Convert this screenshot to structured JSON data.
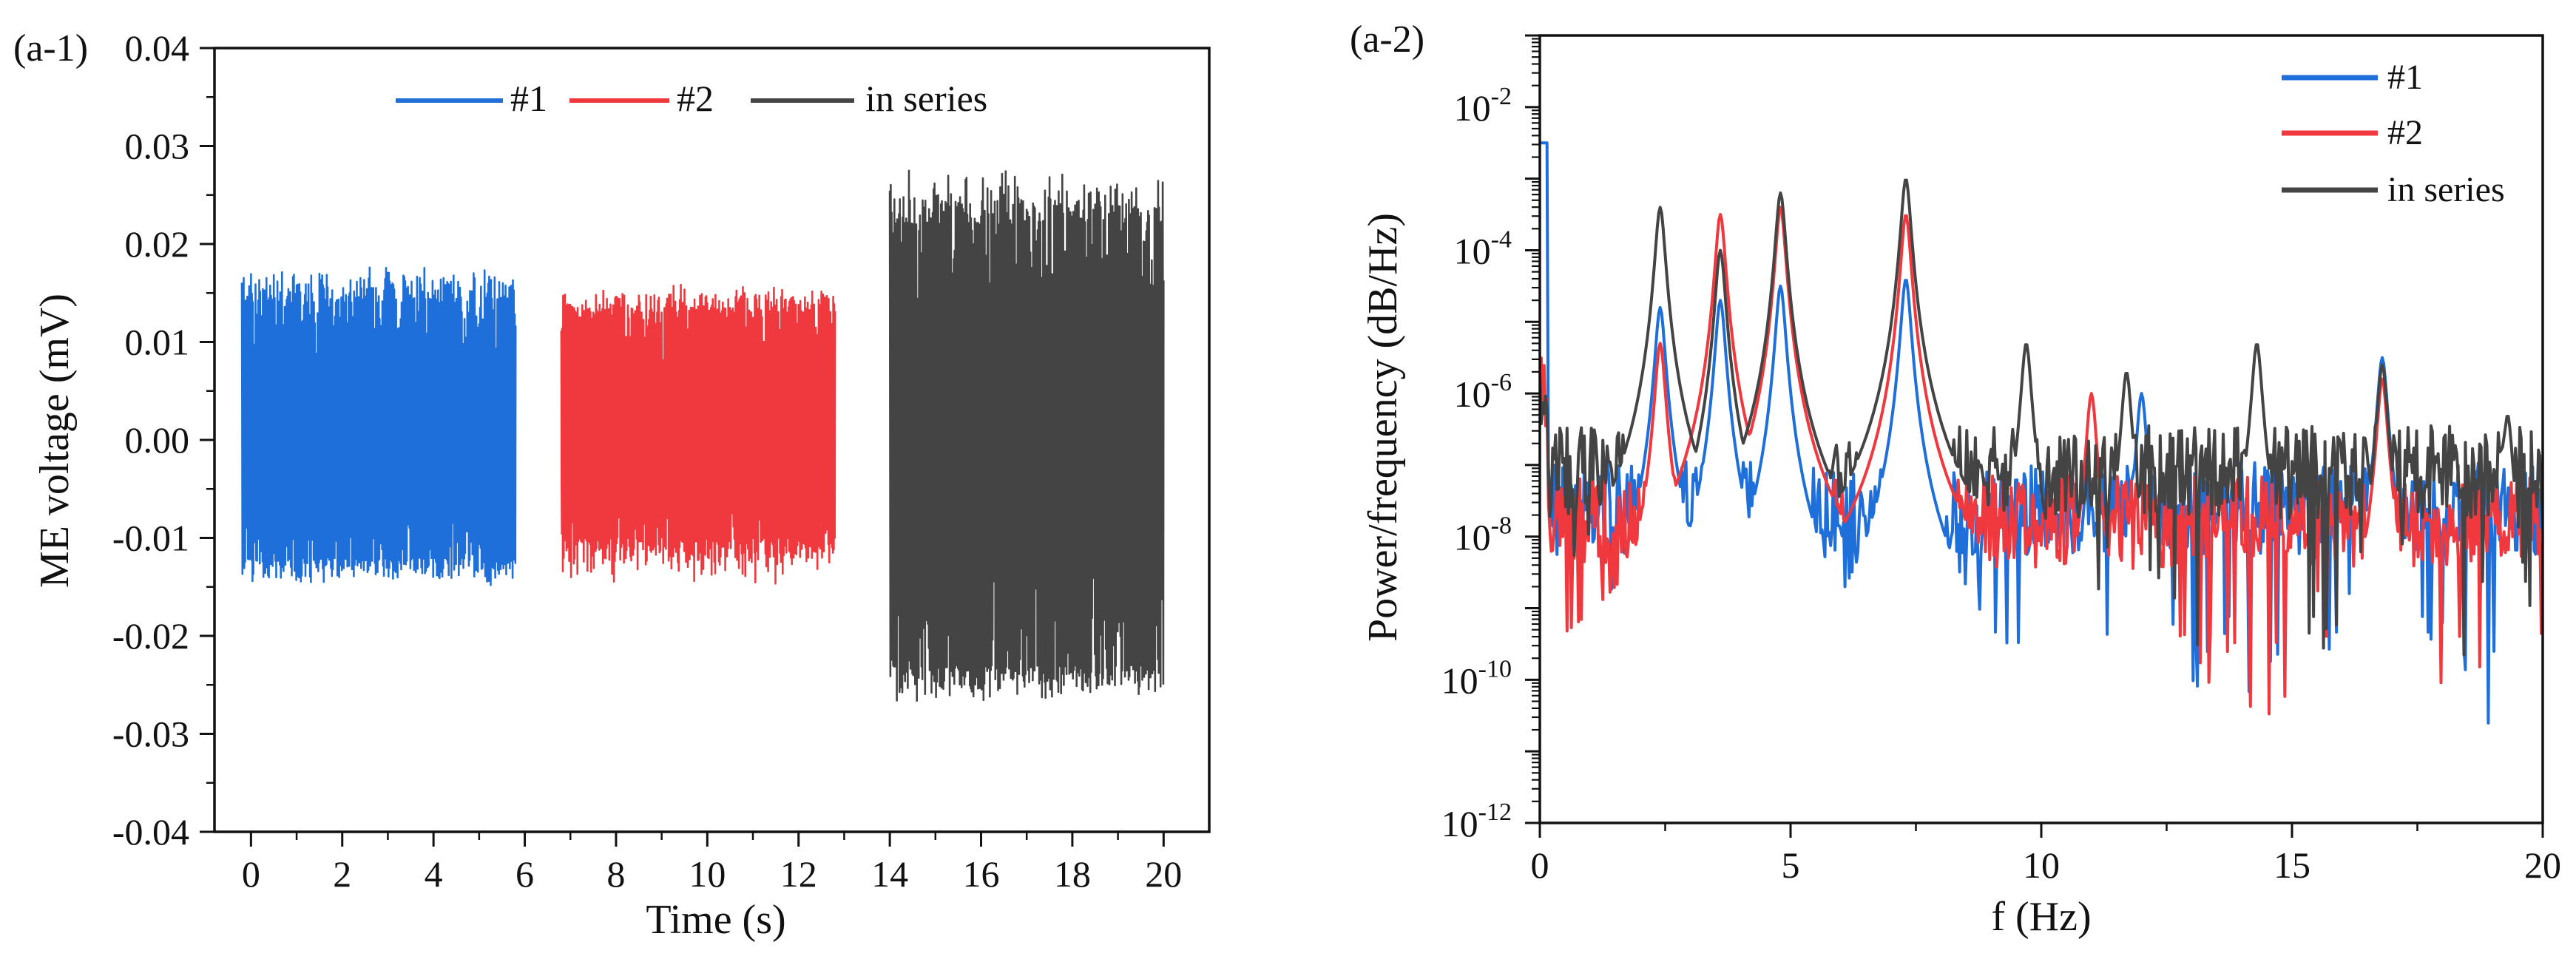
{
  "chart_data": [
    {
      "id": "a1",
      "type": "line",
      "panel_label": "(a-1)",
      "xlabel": "Time (s)",
      "ylabel": "ME voltage (mV)",
      "xlim": [
        -0.8,
        21
      ],
      "ylim": [
        -0.04,
        0.04
      ],
      "xticks": [
        0,
        2,
        4,
        6,
        8,
        10,
        12,
        14,
        16,
        18,
        20
      ],
      "yticks": [
        -0.04,
        -0.03,
        -0.02,
        -0.01,
        0.0,
        0.01,
        0.02,
        0.03,
        0.04
      ],
      "ytick_labels": [
        "-0.04",
        "-0.03",
        "-0.02",
        "-0.01",
        "0.00",
        "0.01",
        "0.02",
        "0.03",
        "0.04"
      ],
      "legend": {
        "placement": "top-center",
        "orientation": "horizontal"
      },
      "series": [
        {
          "name": "#1",
          "color": "#1F6FDB",
          "t_range": [
            -0.2,
            5.8
          ],
          "envelope_max": [
            0.014,
            0.018
          ],
          "envelope_min": [
            -0.012,
            -0.015
          ]
        },
        {
          "name": "#2",
          "color": "#F0393E",
          "t_range": [
            6.8,
            12.8
          ],
          "envelope_max": [
            0.013,
            0.016
          ],
          "envelope_min": [
            -0.01,
            -0.015
          ]
        },
        {
          "name": "in series",
          "color": "#444444",
          "t_range": [
            14.0,
            20.0
          ],
          "envelope_max": [
            0.022,
            0.028
          ],
          "envelope_min": [
            -0.023,
            -0.027
          ]
        }
      ]
    },
    {
      "id": "a2",
      "type": "line",
      "panel_label": "(a-2)",
      "xlabel": "f (Hz)",
      "ylabel": "Power/frequency (dB/Hz)",
      "xlim": [
        0,
        20
      ],
      "ylim_log10": [
        -12,
        -1
      ],
      "xticks": [
        0,
        5,
        10,
        15,
        20
      ],
      "yticks_exp": [
        -12,
        -10,
        -8,
        -6,
        -4,
        -2
      ],
      "legend": {
        "placement": "top-right",
        "orientation": "vertical"
      },
      "series": [
        {
          "name": "#1",
          "color": "#1F6FDB",
          "peaks": [
            [
              2.4,
              -4.8
            ],
            [
              3.6,
              -4.7
            ],
            [
              4.8,
              -4.5
            ],
            [
              7.3,
              -4.4
            ],
            [
              12.0,
              -6.0
            ],
            [
              16.8,
              -5.5
            ]
          ],
          "base_log": -7.6
        },
        {
          "name": "#2",
          "color": "#F0393E",
          "peaks": [
            [
              2.4,
              -5.3
            ],
            [
              3.6,
              -3.5
            ],
            [
              4.8,
              -3.4
            ],
            [
              7.3,
              -3.5
            ],
            [
              11.0,
              -6.0
            ],
            [
              16.8,
              -5.8
            ]
          ],
          "base_log": -7.8
        },
        {
          "name": "in series",
          "color": "#444444",
          "peaks": [
            [
              2.4,
              -3.4
            ],
            [
              3.6,
              -4.0
            ],
            [
              4.8,
              -3.2
            ],
            [
              7.3,
              -3.0
            ],
            [
              9.7,
              -5.3
            ],
            [
              11.7,
              -5.7
            ],
            [
              14.3,
              -5.3
            ],
            [
              16.8,
              -5.6
            ],
            [
              19.3,
              -6.3
            ]
          ],
          "base_log": -7.1
        }
      ]
    }
  ]
}
